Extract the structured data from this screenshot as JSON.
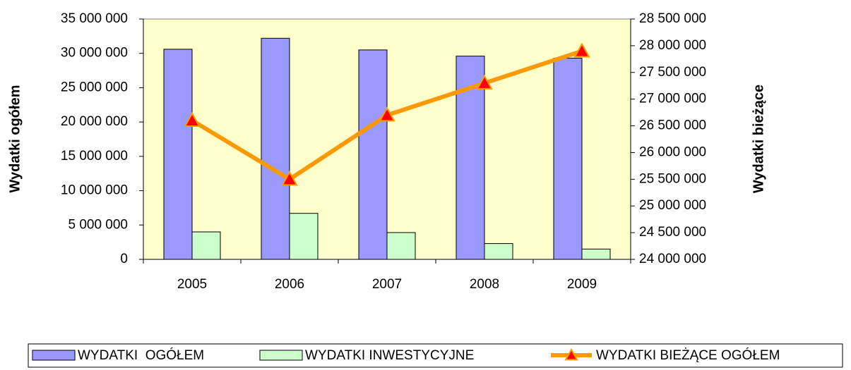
{
  "chart_data": {
    "type": "bar",
    "categories": [
      "2005",
      "2006",
      "2007",
      "2008",
      "2009"
    ],
    "series": [
      {
        "name": "WYDATKI  OGÓŁEM",
        "type": "bar",
        "color": "#9999ff",
        "values": [
          30600000,
          32200000,
          30500000,
          29600000,
          29300000
        ]
      },
      {
        "name": "WYDATKI INWESTYCYJNE",
        "type": "bar",
        "color": "#ccffcc",
        "values": [
          4000000,
          6700000,
          3900000,
          2300000,
          1500000
        ]
      },
      {
        "name": "WYDATKI BIEŻĄCE OGÓŁEM",
        "type": "line",
        "axis": "y2",
        "color": "#ff9900",
        "marker_color": "#ff0000",
        "values": [
          26600000,
          25500000,
          26700000,
          27300000,
          27900000
        ]
      }
    ],
    "ylabel": "Wydatki ogółem",
    "y2label": "Wydatki bieżące",
    "ylim": [
      0,
      35000000
    ],
    "yticks": [
      0,
      {
        "value": 5000000,
        "label": "5 000 000"
      },
      {
        "value": 10000000,
        "label": "10 000 000"
      },
      {
        "value": 15000000,
        "label": "15 000 000"
      },
      {
        "value": 20000000,
        "label": "20 000 000"
      },
      {
        "value": 25000000,
        "label": "25 000 000"
      },
      {
        "value": 30000000,
        "label": "30 000 000"
      },
      {
        "value": 35000000,
        "label": "35 000 000"
      }
    ],
    "y2lim": [
      24000000,
      28500000
    ],
    "y2ticks": [
      {
        "value": 24000000,
        "label": "24 000 000"
      },
      {
        "value": 24500000,
        "label": "24 500 000"
      },
      {
        "value": 25000000,
        "label": "25 000 000"
      },
      {
        "value": 25500000,
        "label": "25 500 000"
      },
      {
        "value": 26000000,
        "label": "26 000 000"
      },
      {
        "value": 26500000,
        "label": "26 500 000"
      },
      {
        "value": 27000000,
        "label": "27 000 000"
      },
      {
        "value": 27500000,
        "label": "27 500 000"
      },
      {
        "value": 28000000,
        "label": "28 000 000"
      },
      {
        "value": 28500000,
        "label": "28 500 000"
      }
    ],
    "plot_background": "#ffffcc",
    "legend": "bottom"
  }
}
